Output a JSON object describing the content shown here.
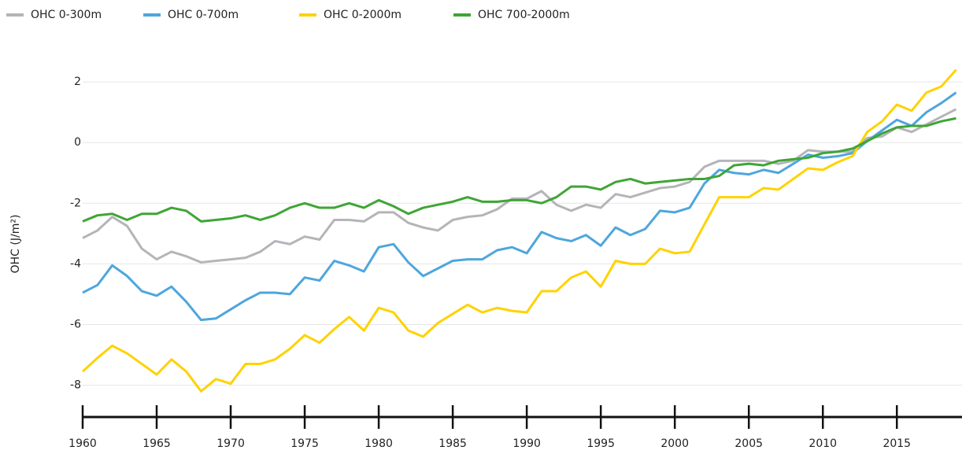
{
  "chart_data": {
    "type": "line",
    "y_label": "OHC (J/m²)",
    "legend": "top-left",
    "grid": true,
    "x": [
      1960,
      1961,
      1962,
      1963,
      1964,
      1965,
      1966,
      1967,
      1968,
      1969,
      1970,
      1971,
      1972,
      1973,
      1974,
      1975,
      1976,
      1977,
      1978,
      1979,
      1980,
      1981,
      1982,
      1983,
      1984,
      1985,
      1986,
      1987,
      1988,
      1989,
      1990,
      1991,
      1992,
      1993,
      1994,
      1995,
      1996,
      1997,
      1998,
      1999,
      2000,
      2001,
      2002,
      2003,
      2004,
      2005,
      2006,
      2007,
      2008,
      2009,
      2010,
      2011,
      2012,
      2013,
      2014,
      2015,
      2016,
      2017,
      2018,
      2019
    ],
    "xlim": [
      1960,
      2019.4
    ],
    "xticks": [
      1960,
      1965,
      1970,
      1975,
      1980,
      1985,
      1990,
      1995,
      2000,
      2005,
      2010,
      2015
    ],
    "ylim": [
      -9.05,
      3.3
    ],
    "yticks": [
      2,
      0,
      -2,
      -4,
      -6,
      -8
    ],
    "series": [
      {
        "name": "OHC 0-300m",
        "color": "#b4b4b9",
        "values": [
          -3.15,
          -2.9,
          -2.45,
          -2.75,
          -3.5,
          -3.85,
          -3.6,
          -3.75,
          -3.95,
          -3.9,
          -3.85,
          -3.8,
          -3.6,
          -3.25,
          -3.35,
          -3.1,
          -3.2,
          -2.55,
          -2.55,
          -2.6,
          -2.3,
          -2.3,
          -2.65,
          -2.8,
          -2.9,
          -2.55,
          -2.45,
          -2.4,
          -2.2,
          -1.85,
          -1.85,
          -1.6,
          -2.05,
          -2.25,
          -2.05,
          -2.15,
          -1.7,
          -1.8,
          -1.65,
          -1.5,
          -1.45,
          -1.3,
          -0.8,
          -0.6,
          -0.6,
          -0.6,
          -0.6,
          -0.7,
          -0.6,
          -0.25,
          -0.3,
          -0.3,
          -0.3,
          0.15,
          0.2,
          0.5,
          0.35,
          0.6,
          0.85,
          1.1
        ]
      },
      {
        "name": "OHC 0-700m",
        "color": "#4ea6dc",
        "values": [
          -4.95,
          -4.7,
          -4.05,
          -4.4,
          -4.9,
          -5.05,
          -4.75,
          -5.25,
          -5.85,
          -5.8,
          -5.5,
          -5.2,
          -4.95,
          -4.95,
          -5.0,
          -4.45,
          -4.55,
          -3.9,
          -4.05,
          -4.25,
          -3.45,
          -3.35,
          -3.95,
          -4.4,
          -4.15,
          -3.9,
          -3.85,
          -3.85,
          -3.55,
          -3.45,
          -3.65,
          -2.95,
          -3.15,
          -3.25,
          -3.05,
          -3.4,
          -2.8,
          -3.05,
          -2.85,
          -2.25,
          -2.3,
          -2.15,
          -1.35,
          -0.9,
          -1.0,
          -1.05,
          -0.9,
          -1.0,
          -0.7,
          -0.4,
          -0.5,
          -0.45,
          -0.35,
          0.05,
          0.4,
          0.75,
          0.55,
          1.0,
          1.3,
          1.65
        ]
      },
      {
        "name": "OHC 0-2000m",
        "color": "#ffd200",
        "values": [
          -7.55,
          -7.1,
          -6.7,
          -6.95,
          -7.3,
          -7.65,
          -7.15,
          -7.55,
          -8.2,
          -7.8,
          -7.95,
          -7.3,
          -7.3,
          -7.15,
          -6.8,
          -6.35,
          -6.6,
          -6.15,
          -5.75,
          -6.2,
          -5.45,
          -5.6,
          -6.2,
          -6.4,
          -5.95,
          -5.65,
          -5.35,
          -5.6,
          -5.45,
          -5.55,
          -5.6,
          -4.9,
          -4.9,
          -4.45,
          -4.25,
          -4.75,
          -3.9,
          -4.0,
          -4.0,
          -3.5,
          -3.65,
          -3.6,
          -2.7,
          -1.8,
          -1.8,
          -1.8,
          -1.5,
          -1.55,
          -1.2,
          -0.85,
          -0.9,
          -0.65,
          -0.45,
          0.35,
          0.7,
          1.25,
          1.05,
          1.65,
          1.85,
          2.4
        ]
      },
      {
        "name": "OHC 700-2000m",
        "color": "#3fa535",
        "values": [
          -2.6,
          -2.4,
          -2.35,
          -2.55,
          -2.35,
          -2.35,
          -2.15,
          -2.25,
          -2.6,
          -2.55,
          -2.5,
          -2.4,
          -2.55,
          -2.4,
          -2.15,
          -2.0,
          -2.15,
          -2.15,
          -2.0,
          -2.15,
          -1.9,
          -2.1,
          -2.35,
          -2.15,
          -2.05,
          -1.95,
          -1.8,
          -1.95,
          -1.95,
          -1.9,
          -1.9,
          -2.0,
          -1.8,
          -1.45,
          -1.45,
          -1.55,
          -1.3,
          -1.2,
          -1.35,
          -1.3,
          -1.25,
          -1.2,
          -1.2,
          -1.1,
          -0.75,
          -0.7,
          -0.75,
          -0.6,
          -0.55,
          -0.5,
          -0.35,
          -0.3,
          -0.2,
          0.05,
          0.3,
          0.5,
          0.55,
          0.55,
          0.7,
          0.8
        ]
      }
    ]
  }
}
